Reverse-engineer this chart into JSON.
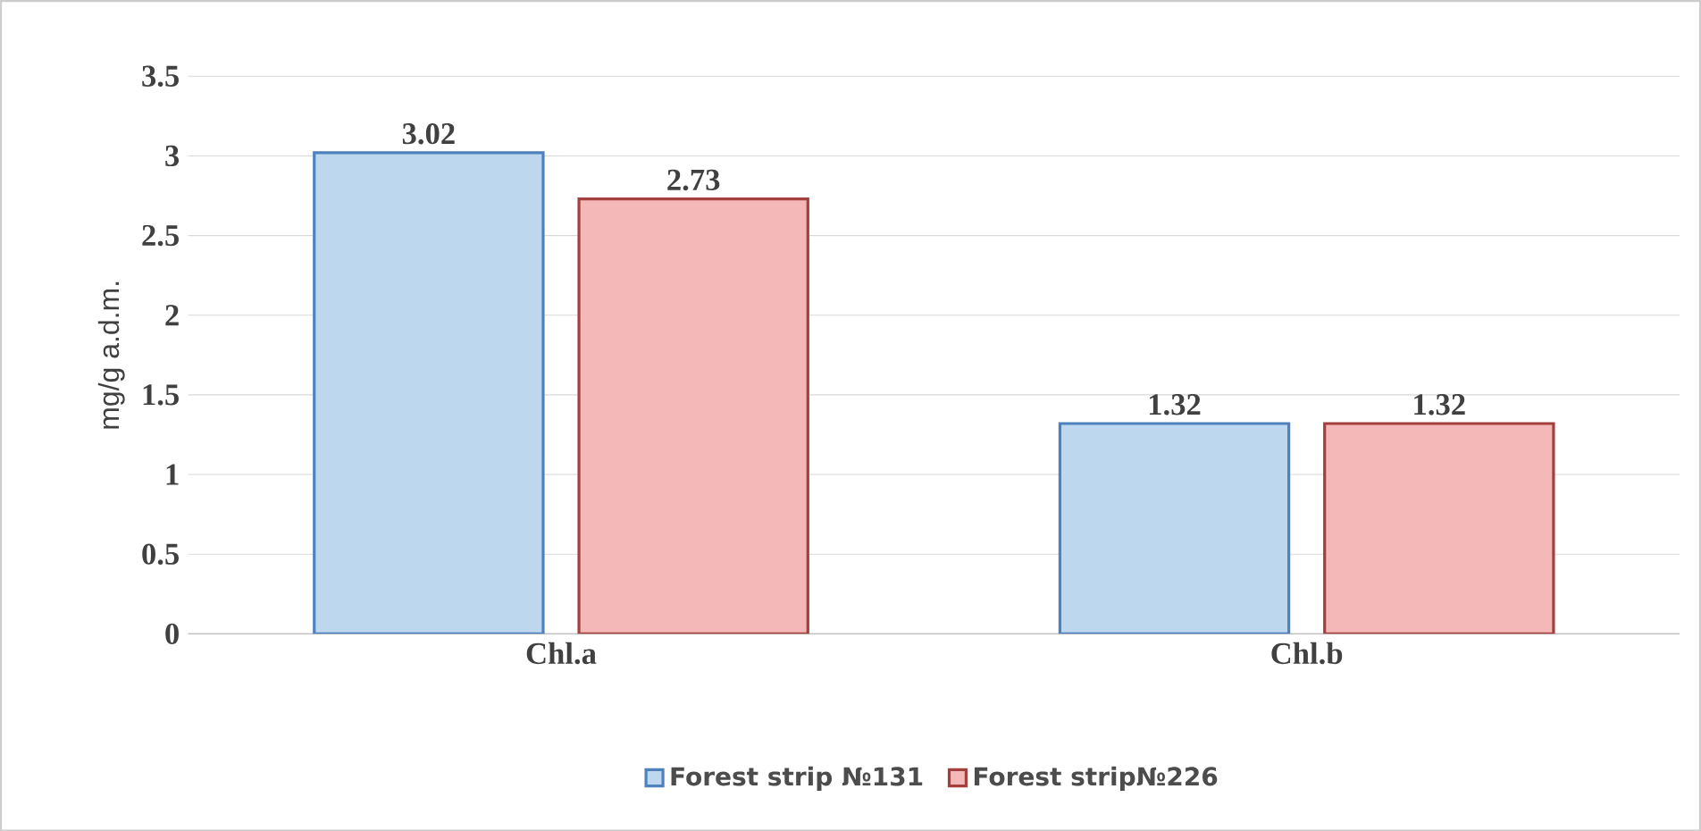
{
  "chart_data": {
    "type": "bar",
    "ylabel": "mg/g a.d.m.",
    "categories": [
      "Chl.a",
      "Chl.b"
    ],
    "series": [
      {
        "name": "Forest strip №131",
        "color": "#bdd7ee",
        "values": [
          3.02,
          1.32
        ]
      },
      {
        "name": "Forest strip№226",
        "color": "#f4b8b8",
        "values": [
          2.73,
          1.32
        ]
      }
    ],
    "ylim": [
      0,
      3.5
    ],
    "yticks": [
      0,
      0.5,
      1,
      1.5,
      2,
      2.5,
      3,
      3.5
    ],
    "grid": "y",
    "legend": "bottom",
    "data_labels": true
  }
}
